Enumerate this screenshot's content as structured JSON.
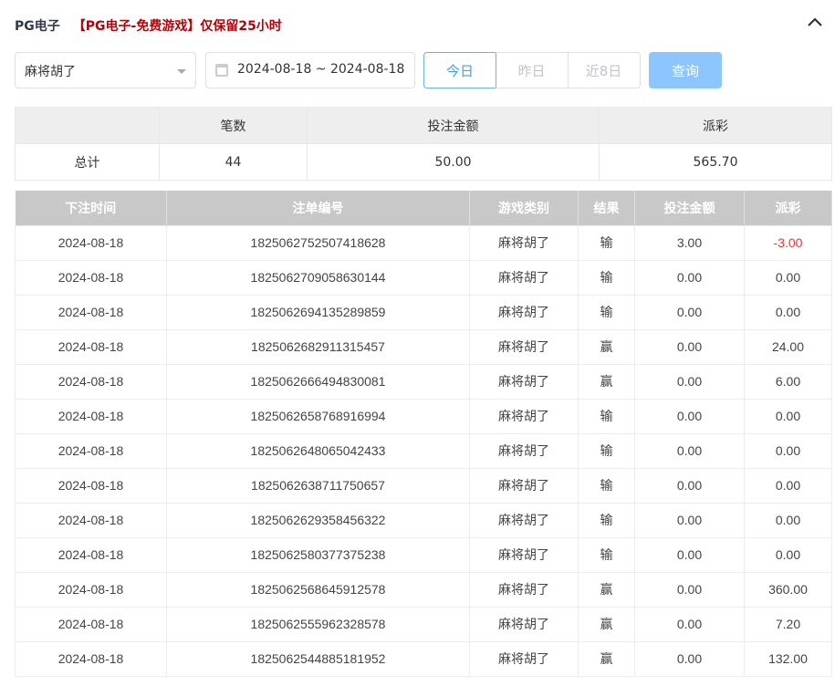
{
  "header": {
    "title": "PG电子",
    "notice": "【PG电子-免费游戏】仅保留25小时"
  },
  "filters": {
    "game": "麻将胡了",
    "date_range": "2024-08-18 ~ 2024-08-18",
    "today": "今日",
    "yesterday": "昨日",
    "last8": "近8日",
    "query": "查询"
  },
  "summary": {
    "headers": [
      "",
      "笔数",
      "投注金额",
      "派彩"
    ],
    "row": [
      "总计",
      "44",
      "50.00",
      "565.70"
    ]
  },
  "table": {
    "headers": [
      "下注时间",
      "注单编号",
      "游戏类别",
      "结果",
      "投注金额",
      "派彩"
    ],
    "rows": [
      [
        "2024-08-18",
        "1825062752507418628",
        "麻将胡了",
        "输",
        "3.00",
        "-3.00"
      ],
      [
        "2024-08-18",
        "1825062709058630144",
        "麻将胡了",
        "输",
        "0.00",
        "0.00"
      ],
      [
        "2024-08-18",
        "1825062694135289859",
        "麻将胡了",
        "输",
        "0.00",
        "0.00"
      ],
      [
        "2024-08-18",
        "1825062682911315457",
        "麻将胡了",
        "赢",
        "0.00",
        "24.00"
      ],
      [
        "2024-08-18",
        "1825062666494830081",
        "麻将胡了",
        "赢",
        "0.00",
        "6.00"
      ],
      [
        "2024-08-18",
        "1825062658768916994",
        "麻将胡了",
        "输",
        "0.00",
        "0.00"
      ],
      [
        "2024-08-18",
        "1825062648065042433",
        "麻将胡了",
        "输",
        "0.00",
        "0.00"
      ],
      [
        "2024-08-18",
        "1825062638711750657",
        "麻将胡了",
        "输",
        "0.00",
        "0.00"
      ],
      [
        "2024-08-18",
        "1825062629358456322",
        "麻将胡了",
        "输",
        "0.00",
        "0.00"
      ],
      [
        "2024-08-18",
        "1825062580377375238",
        "麻将胡了",
        "输",
        "0.00",
        "0.00"
      ],
      [
        "2024-08-18",
        "1825062568645912578",
        "麻将胡了",
        "赢",
        "0.00",
        "360.00"
      ],
      [
        "2024-08-18",
        "1825062555962328578",
        "麻将胡了",
        "赢",
        "0.00",
        "7.20"
      ],
      [
        "2024-08-18",
        "1825062544885181952",
        "麻将胡了",
        "赢",
        "0.00",
        "132.00"
      ]
    ]
  },
  "colors": {
    "notice": "#b5000a",
    "negative": "#e0383e",
    "accent": "#409eff"
  }
}
